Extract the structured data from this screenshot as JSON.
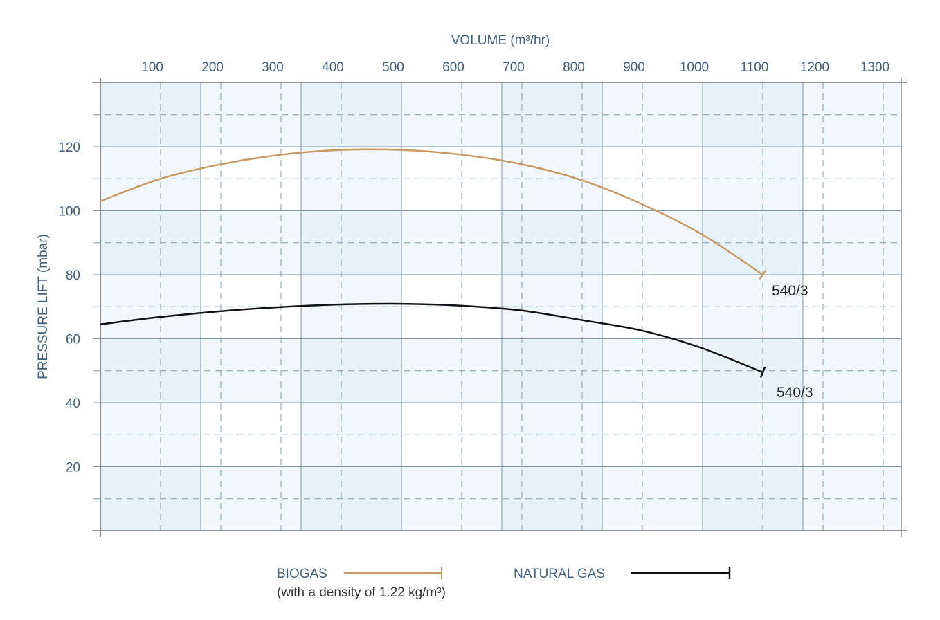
{
  "chart_data": {
    "type": "line",
    "xlabel": "VOLUME (m³/hr)",
    "ylabel": "PRESSURE LIFT (mbar)",
    "xlim": [
      0,
      1330
    ],
    "ylim": [
      0,
      140
    ],
    "x_ticks": [
      100,
      200,
      300,
      400,
      500,
      600,
      700,
      800,
      900,
      1000,
      1100,
      1200,
      1300
    ],
    "y_ticks": [
      20,
      40,
      60,
      80,
      100,
      120
    ],
    "grid": true,
    "legend_position": "bottom",
    "series": [
      {
        "name": "BIOGAS",
        "note": "(with a density of 1.22 kg/m³)",
        "color": "#c79a64",
        "end_label": "540/3",
        "x": [
          0,
          100,
          200,
          300,
          400,
          500,
          600,
          700,
          800,
          900,
          1000,
          1100
        ],
        "y": [
          103,
          110,
          114.5,
          117.5,
          119,
          119,
          117.5,
          114.5,
          109.5,
          102,
          92.5,
          80
        ]
      },
      {
        "name": "NATURAL GAS",
        "color": "#111111",
        "end_label": "540/3",
        "x": [
          0,
          100,
          200,
          300,
          400,
          500,
          600,
          700,
          800,
          900,
          1000,
          1100
        ],
        "y": [
          64.5,
          66.8,
          68.6,
          69.9,
          70.7,
          70.9,
          70.3,
          68.8,
          65.8,
          62.5,
          57,
          49.5
        ]
      }
    ]
  }
}
